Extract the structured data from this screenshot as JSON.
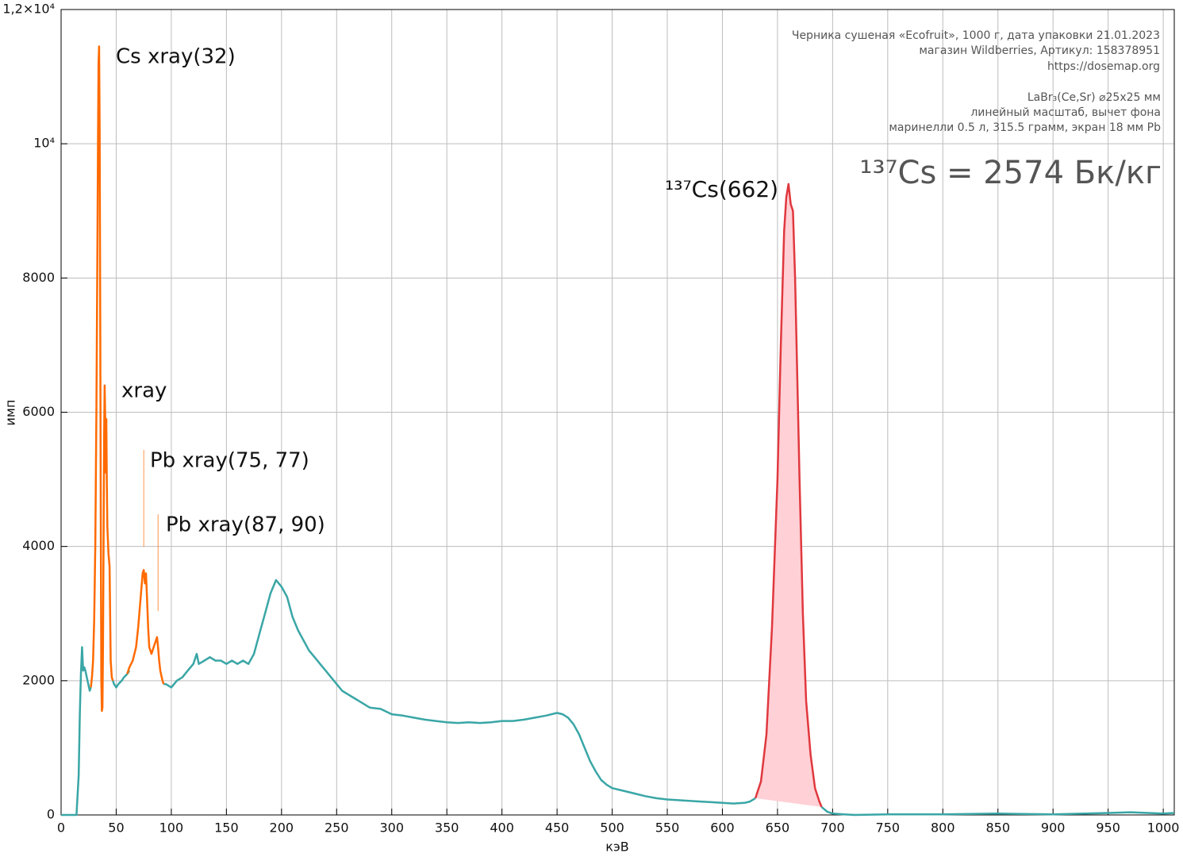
{
  "chart_data": {
    "type": "line",
    "xlabel": "кэВ",
    "ylabel": "имп",
    "xlim": [
      0,
      1010
    ],
    "ylim": [
      0,
      12000
    ],
    "xticks": [
      0,
      50,
      100,
      150,
      200,
      250,
      300,
      350,
      400,
      450,
      500,
      550,
      600,
      650,
      700,
      750,
      800,
      850,
      900,
      950,
      1000
    ],
    "yticks": [
      0,
      2000,
      4000,
      6000,
      8000,
      {
        "value": 10000,
        "label": "10⁴"
      },
      {
        "value": 12000,
        "label": "1,2×10⁴"
      }
    ],
    "grid": true,
    "series": [
      {
        "color": "#3aa6a6",
        "x": [
          0,
          10,
          14,
          16,
          17,
          18,
          19,
          20,
          21,
          22,
          24,
          26,
          27,
          35,
          47,
          48,
          50,
          52,
          55,
          57,
          60,
          62,
          77,
          93,
          95,
          100,
          105,
          110,
          115,
          120,
          123,
          125,
          130,
          135,
          140,
          145,
          150,
          155,
          160,
          165,
          170,
          175,
          180,
          185,
          190,
          195,
          200,
          205,
          210,
          215,
          220,
          225,
          230,
          235,
          240,
          245,
          250,
          255,
          260,
          265,
          270,
          275,
          280,
          290,
          300,
          310,
          320,
          330,
          340,
          350,
          360,
          370,
          380,
          390,
          400,
          410,
          420,
          430,
          440,
          450,
          455,
          460,
          465,
          470,
          475,
          480,
          485,
          490,
          495,
          500,
          510,
          520,
          530,
          540,
          550,
          560,
          570,
          580,
          590,
          600,
          610,
          620,
          625,
          630,
          660,
          690,
          695,
          700,
          710,
          720,
          750,
          800,
          850,
          900,
          950,
          970,
          1000,
          1010
        ],
        "values": [
          0,
          0,
          0,
          600,
          1500,
          2100,
          2500,
          2150,
          2200,
          2150,
          2000,
          1850,
          1900,
          null,
          2000,
          1950,
          1900,
          1950,
          2000,
          2050,
          2100,
          2150,
          null,
          1950,
          1950,
          1900,
          2000,
          2050,
          2150,
          2250,
          2400,
          2250,
          2300,
          2350,
          2300,
          2300,
          2250,
          2300,
          2250,
          2300,
          2250,
          2400,
          2700,
          3000,
          3300,
          3500,
          3400,
          3250,
          2950,
          2750,
          2600,
          2450,
          2350,
          2250,
          2150,
          2050,
          1950,
          1850,
          1800,
          1750,
          1700,
          1650,
          1600,
          1580,
          1500,
          1480,
          1450,
          1420,
          1400,
          1380,
          1370,
          1380,
          1370,
          1380,
          1400,
          1400,
          1420,
          1450,
          1480,
          1520,
          1500,
          1450,
          1350,
          1200,
          1000,
          800,
          650,
          520,
          450,
          400,
          360,
          320,
          280,
          250,
          230,
          220,
          210,
          200,
          190,
          180,
          170,
          180,
          200,
          250,
          null,
          120,
          50,
          20,
          10,
          0,
          10,
          10,
          20,
          10,
          30,
          40,
          20,
          30
        ]
      },
      {
        "color": "#ff6a00",
        "x": [
          27,
          28,
          29,
          30,
          31,
          32,
          33,
          33.5,
          34,
          34.5,
          35,
          35.5,
          36,
          36.5,
          37,
          37.5,
          38,
          38.5,
          39,
          39.5,
          40,
          40.5,
          41,
          41.5,
          42,
          43,
          44,
          44.5,
          45,
          46,
          47,
          54,
          60,
          62,
          65,
          68,
          70,
          72,
          74,
          75,
          76,
          77,
          78,
          79,
          80,
          82,
          84,
          86,
          87,
          88,
          89,
          90,
          92,
          93
        ],
        "values": [
          1900,
          2050,
          2300,
          2900,
          4000,
          6000,
          8500,
          10000,
          11200,
          11450,
          10200,
          7500,
          4500,
          2000,
          1550,
          1600,
          2500,
          4000,
          5600,
          6400,
          5900,
          5100,
          5900,
          5000,
          4300,
          3900,
          3700,
          3000,
          2300,
          2050,
          2000,
          null,
          2100,
          2200,
          2300,
          2500,
          2800,
          3200,
          3600,
          3650,
          3450,
          3600,
          3200,
          2800,
          2500,
          2400,
          2500,
          2600,
          2650,
          2500,
          2300,
          2150,
          2000,
          1950
        ]
      },
      {
        "color": "#e0383e",
        "fill": "#ffd0d5",
        "x": [
          630,
          635,
          640,
          645,
          650,
          653,
          656,
          658,
          660,
          662,
          664,
          666,
          668,
          670,
          673,
          676,
          680,
          684,
          688,
          690
        ],
        "values": [
          250,
          500,
          1200,
          2800,
          5000,
          7000,
          8700,
          9200,
          9400,
          9100,
          9000,
          8000,
          6500,
          5000,
          3000,
          1700,
          900,
          400,
          200,
          120
        ]
      }
    ],
    "annotations": [
      {
        "text": "Cs xray(32)",
        "color": "#ff6a00"
      },
      {
        "text": "xray",
        "color": "#ff6a00"
      },
      {
        "text": "Pb xray(75, 77)",
        "color": "#ff6a00",
        "x": 75
      },
      {
        "text": "Pb xray(87, 90)",
        "color": "#ff6a00",
        "x": 88
      },
      {
        "text": "¹³⁷Cs(662)",
        "color": "#d8202a"
      }
    ],
    "info": [
      "Черника сушеная «Ecofruit», 1000 г, дата упаковки 21.01.2023",
      "магазин Wildberries, Артикул: 158378951",
      "https://dosemap.org",
      "LaBr₃(Ce,Sr) ⌀25x25 мм",
      "линейный масштаб, вычет фона",
      "маринелли 0.5 л, 315.5 грамм, экран 18 мм Pb"
    ],
    "result": "¹³⁷Cs = 2574 Бк/кг"
  }
}
